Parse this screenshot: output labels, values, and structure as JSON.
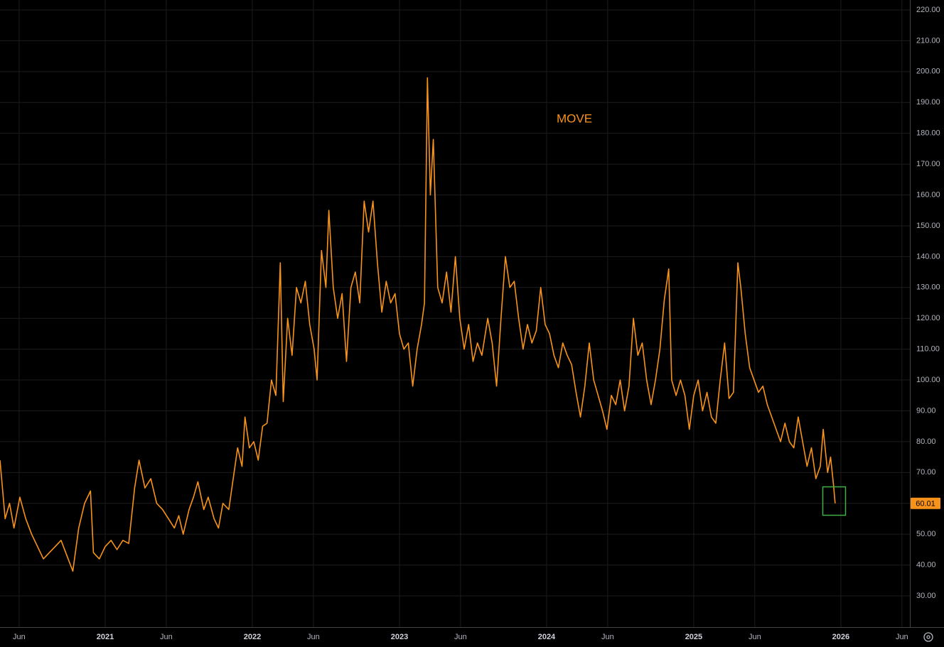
{
  "chart_data": {
    "type": "line",
    "x": [
      2020.285,
      2020.32,
      2020.35,
      2020.38,
      2020.42,
      2020.46,
      2020.5,
      2020.54,
      2020.58,
      2020.62,
      2020.66,
      2020.7,
      2020.74,
      2020.78,
      2020.82,
      2020.86,
      2020.9,
      2020.92,
      2020.96,
      2021.0,
      2021.04,
      2021.08,
      2021.12,
      2021.16,
      2021.2,
      2021.23,
      2021.27,
      2021.31,
      2021.35,
      2021.39,
      2021.43,
      2021.47,
      2021.5,
      2021.53,
      2021.57,
      2021.6,
      2021.63,
      2021.67,
      2021.7,
      2021.74,
      2021.77,
      2021.8,
      2021.84,
      2021.87,
      2021.9,
      2021.93,
      2021.95,
      2021.98,
      2022.01,
      2022.04,
      2022.07,
      2022.1,
      2022.13,
      2022.16,
      2022.19,
      2022.21,
      2022.24,
      2022.27,
      2022.3,
      2022.33,
      2022.36,
      2022.39,
      2022.42,
      2022.44,
      2022.47,
      2022.5,
      2022.52,
      2022.55,
      2022.58,
      2022.61,
      2022.64,
      2022.67,
      2022.7,
      2022.73,
      2022.76,
      2022.79,
      2022.82,
      2022.85,
      2022.88,
      2022.91,
      2022.94,
      2022.97,
      2023.0,
      2023.03,
      2023.06,
      2023.09,
      2023.12,
      2023.15,
      2023.17,
      2023.19,
      2023.21,
      2023.23,
      2023.26,
      2023.29,
      2023.32,
      2023.35,
      2023.38,
      2023.41,
      2023.44,
      2023.47,
      2023.5,
      2023.53,
      2023.56,
      2023.6,
      2023.63,
      2023.66,
      2023.69,
      2023.72,
      2023.75,
      2023.78,
      2023.81,
      2023.84,
      2023.87,
      2023.9,
      2023.93,
      2023.96,
      2023.99,
      2024.02,
      2024.05,
      2024.08,
      2024.11,
      2024.14,
      2024.17,
      2024.2,
      2024.23,
      2024.26,
      2024.29,
      2024.32,
      2024.35,
      2024.38,
      2024.41,
      2024.44,
      2024.47,
      2024.5,
      2024.53,
      2024.56,
      2024.59,
      2024.62,
      2024.65,
      2024.68,
      2024.71,
      2024.74,
      2024.77,
      2024.8,
      2024.83,
      2024.85,
      2024.88,
      2024.91,
      2024.94,
      2024.97,
      2025.0,
      2025.03,
      2025.06,
      2025.09,
      2025.12,
      2025.15,
      2025.18,
      2025.21,
      2025.24,
      2025.27,
      2025.3,
      2025.32,
      2025.35,
      2025.38,
      2025.41,
      2025.44,
      2025.47,
      2025.5,
      2025.53,
      2025.56,
      2025.59,
      2025.62,
      2025.65,
      2025.68,
      2025.71,
      2025.74,
      2025.77,
      2025.8,
      2025.83,
      2025.86,
      2025.88,
      2025.91,
      2025.93,
      2025.95,
      2025.961
    ],
    "series": [
      {
        "name": "MOVE",
        "color": "#f7931a",
        "values": [
          74,
          55,
          60,
          52,
          62,
          55,
          50,
          46,
          42,
          44,
          46,
          48,
          43,
          38,
          52,
          60,
          64,
          44,
          42,
          46,
          48,
          45,
          48,
          47,
          65,
          74,
          65,
          68,
          60,
          58,
          55,
          52,
          56,
          50,
          58,
          62,
          67,
          58,
          62,
          55,
          52,
          60,
          58,
          68,
          78,
          72,
          88,
          78,
          80,
          74,
          85,
          86,
          100,
          95,
          138,
          93,
          120,
          108,
          130,
          125,
          132,
          118,
          110,
          100,
          142,
          130,
          155,
          130,
          120,
          128,
          106,
          130,
          135,
          125,
          158,
          148,
          158,
          138,
          122,
          132,
          125,
          128,
          115,
          110,
          112,
          98,
          110,
          118,
          125,
          198,
          160,
          178,
          130,
          125,
          135,
          122,
          140,
          120,
          110,
          118,
          106,
          112,
          108,
          120,
          112,
          98,
          120,
          140,
          130,
          132,
          120,
          110,
          118,
          112,
          116,
          130,
          118,
          115,
          108,
          104,
          112,
          108,
          105,
          96,
          88,
          98,
          112,
          100,
          95,
          90,
          84,
          95,
          92,
          100,
          90,
          98,
          120,
          108,
          112,
          100,
          92,
          100,
          110,
          126,
          136,
          100,
          95,
          100,
          95,
          84,
          95,
          100,
          90,
          96,
          88,
          86,
          100,
          112,
          94,
          96,
          138,
          130,
          115,
          104,
          100,
          96,
          98,
          92,
          88,
          84,
          80,
          86,
          80,
          78,
          88,
          80,
          72,
          78,
          68,
          72,
          84,
          70,
          75,
          66,
          60.01
        ]
      }
    ],
    "xlim": [
      2020.285,
      2026.469
    ],
    "xticks": [
      {
        "value": 2020.415,
        "label": "Jun"
      },
      {
        "value": 2021,
        "label": "2021"
      },
      {
        "value": 2021.415,
        "label": "Jun"
      },
      {
        "value": 2022,
        "label": "2022"
      },
      {
        "value": 2022.415,
        "label": "Jun"
      },
      {
        "value": 2023,
        "label": "2023"
      },
      {
        "value": 2023.415,
        "label": "Jun"
      },
      {
        "value": 2024,
        "label": "2024"
      },
      {
        "value": 2024.415,
        "label": "Jun"
      },
      {
        "value": 2025,
        "label": "2025"
      },
      {
        "value": 2025.415,
        "label": "Jun"
      },
      {
        "value": 2026,
        "label": "2026"
      },
      {
        "value": 2026.415,
        "label": "Jun"
      }
    ],
    "ylim": [
      19.87,
      223.22
    ],
    "yticks": [
      {
        "value": 30,
        "label": "30.00"
      },
      {
        "value": 40,
        "label": "40.00"
      },
      {
        "value": 50,
        "label": "50.00"
      },
      {
        "value": 60,
        "label": "60.00"
      },
      {
        "value": 70,
        "label": "70.00"
      },
      {
        "value": 80,
        "label": "80.00"
      },
      {
        "value": 90,
        "label": "90.00"
      },
      {
        "value": 100,
        "label": "100.00"
      },
      {
        "value": 110,
        "label": "110.00"
      },
      {
        "value": 120,
        "label": "120.00"
      },
      {
        "value": 130,
        "label": "130.00"
      },
      {
        "value": 140,
        "label": "140.00"
      },
      {
        "value": 150,
        "label": "150.00"
      },
      {
        "value": 160,
        "label": "160.00"
      },
      {
        "value": 170,
        "label": "170.00"
      },
      {
        "value": 180,
        "label": "180.00"
      },
      {
        "value": 190,
        "label": "190.00"
      },
      {
        "value": 200,
        "label": "200.00"
      },
      {
        "value": 210,
        "label": "210.00"
      },
      {
        "value": 220,
        "label": "220.00"
      }
    ],
    "grid": true
  }
}
